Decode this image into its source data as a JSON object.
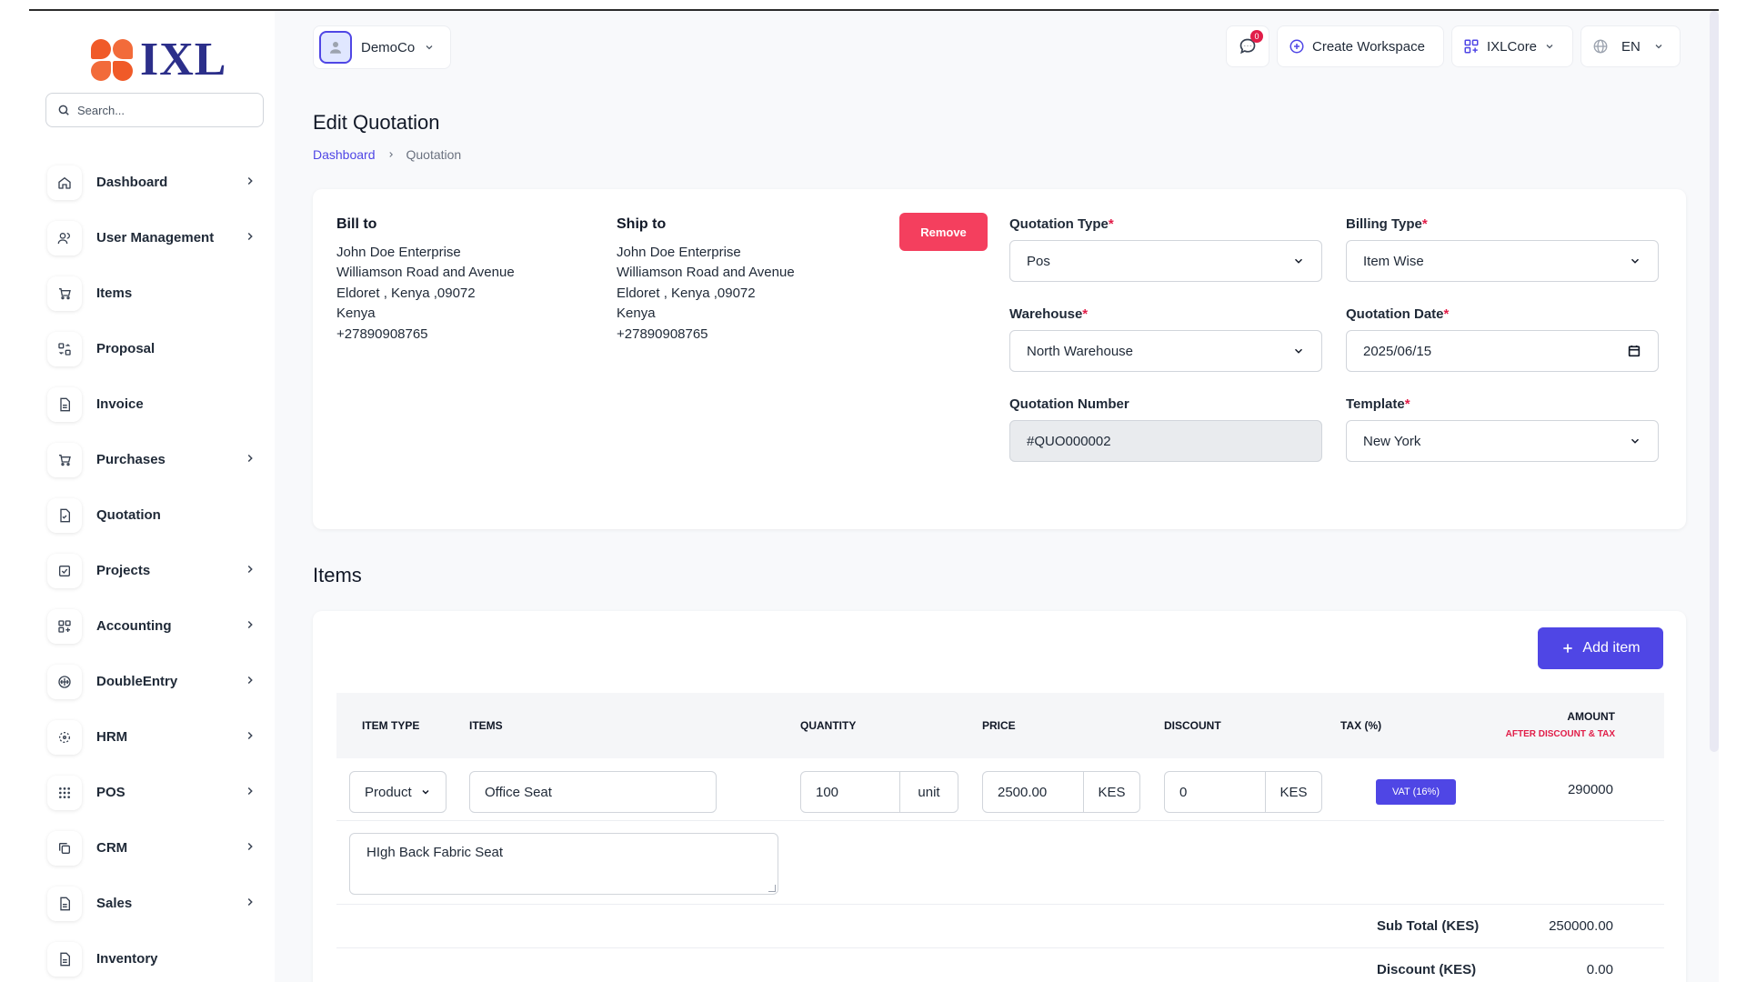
{
  "brand": {
    "name": "IXL"
  },
  "search": {
    "placeholder": "Search..."
  },
  "nav": [
    {
      "label": "Dashboard",
      "icon": "home-icon",
      "chevron": true
    },
    {
      "label": "User Management",
      "icon": "users-icon",
      "chevron": true
    },
    {
      "label": "Items",
      "icon": "cart-icon",
      "chevron": false
    },
    {
      "label": "Proposal",
      "icon": "swap-icon",
      "chevron": false
    },
    {
      "label": "Invoice",
      "icon": "file-icon",
      "chevron": false
    },
    {
      "label": "Purchases",
      "icon": "cart-icon",
      "chevron": true
    },
    {
      "label": "Quotation",
      "icon": "file-check-icon",
      "chevron": false
    },
    {
      "label": "Projects",
      "icon": "checkbox-icon",
      "chevron": true
    },
    {
      "label": "Accounting",
      "icon": "grid-plus-icon",
      "chevron": true
    },
    {
      "label": "DoubleEntry",
      "icon": "scale-icon",
      "chevron": true
    },
    {
      "label": "HRM",
      "icon": "hrm-icon",
      "chevron": true
    },
    {
      "label": "POS",
      "icon": "dots-grid-icon",
      "chevron": true
    },
    {
      "label": "CRM",
      "icon": "copy-icon",
      "chevron": true
    },
    {
      "label": "Sales",
      "icon": "file-icon",
      "chevron": true
    },
    {
      "label": "Inventory",
      "icon": "file-icon",
      "chevron": false
    }
  ],
  "header": {
    "company": "DemoCo",
    "notifications_count": "0",
    "create_workspace": "Create Workspace",
    "workspace": "IXLCore",
    "language": "EN"
  },
  "page": {
    "title": "Edit Quotation",
    "breadcrumb": {
      "home": "Dashboard",
      "current": "Quotation"
    }
  },
  "bill_to": {
    "heading": "Bill to",
    "lines": [
      "John Doe Enterprise",
      "Williamson Road and Avenue",
      "Eldoret , Kenya ,09072",
      "Kenya",
      "+27890908765"
    ]
  },
  "ship_to": {
    "heading": "Ship to",
    "lines": [
      "John Doe Enterprise",
      "Williamson Road and Avenue",
      "Eldoret , Kenya ,09072",
      "Kenya",
      "+27890908765"
    ]
  },
  "remove_label": "Remove",
  "form": {
    "quotation_type": {
      "label": "Quotation Type",
      "value": "Pos"
    },
    "billing_type": {
      "label": "Billing Type",
      "value": "Item Wise"
    },
    "warehouse": {
      "label": "Warehouse",
      "value": "North Warehouse"
    },
    "quotation_date": {
      "label": "Quotation Date",
      "value": "2025/06/15"
    },
    "quotation_number": {
      "label": "Quotation Number",
      "value": "#QUO000002"
    },
    "template": {
      "label": "Template",
      "value": "New York"
    }
  },
  "items_section": {
    "title": "Items",
    "add_label": "Add item",
    "columns": {
      "item_type": "ITEM TYPE",
      "items": "ITEMS",
      "quantity": "QUANTITY",
      "price": "PRICE",
      "discount": "DISCOUNT",
      "tax": "TAX (%)",
      "amount": "AMOUNT",
      "amount_sub": "AFTER DISCOUNT & TAX"
    },
    "row": {
      "item_type": "Product",
      "item": "Office Seat",
      "quantity": "100",
      "unit": "unit",
      "price": "2500.00",
      "price_currency": "KES",
      "discount": "0",
      "discount_currency": "KES",
      "tax": "VAT (16%)",
      "amount": "290000",
      "description": "HIgh Back Fabric Seat"
    },
    "summary": {
      "subtotal_label": "Sub Total (KES)",
      "subtotal_value": "250000.00",
      "discount_label": "Discount (KES)",
      "discount_value": "0.00"
    }
  },
  "colors": {
    "accent": "#4f46e5",
    "danger": "#f43f5e",
    "brand_orange": "#f05a28",
    "brand_navy": "#2c2f8a"
  }
}
